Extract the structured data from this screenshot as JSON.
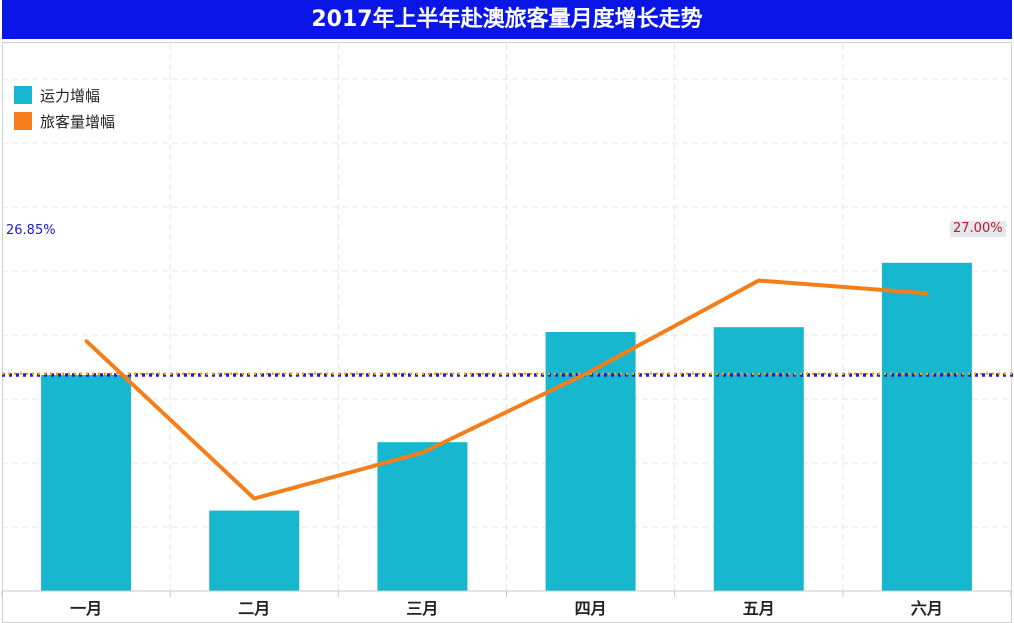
{
  "title": "2017年上半年赴澳旅客量月度增长走势",
  "colors": {
    "title_background": "#0a16e8",
    "bar": "#17b8cf",
    "line": "#f47f1a",
    "reference_line_blue": "#1b1bd9",
    "reference_line_orange": "#f4a11a"
  },
  "legend": [
    {
      "label": "运力增幅",
      "color": "#17b8cf"
    },
    {
      "label": "旅客量增幅",
      "color": "#f47f1a"
    }
  ],
  "chart_data": {
    "type": "bar",
    "categories": [
      "一月",
      "二月",
      "三月",
      "四月",
      "五月",
      "六月"
    ],
    "ylim": [
      0,
      68
    ],
    "series": [
      {
        "name": "运力增幅",
        "type": "bar",
        "values": [
          26.85,
          10.0,
          18.5,
          32.2,
          32.8,
          40.8
        ]
      },
      {
        "name": "旅客量增幅",
        "type": "line",
        "values": [
          31.1,
          11.5,
          17.2,
          27.3,
          38.6,
          37.0
        ]
      }
    ],
    "reference_lines": [
      {
        "value": 26.85,
        "label": "26.85%",
        "color": "#1b1bd9",
        "label_side": "left"
      },
      {
        "value": 27.0,
        "label": "27.00%",
        "color": "#f4a11a",
        "label_side": "right"
      }
    ],
    "grid": true,
    "legend_position": "top-left",
    "xlabel": "",
    "ylabel": ""
  }
}
